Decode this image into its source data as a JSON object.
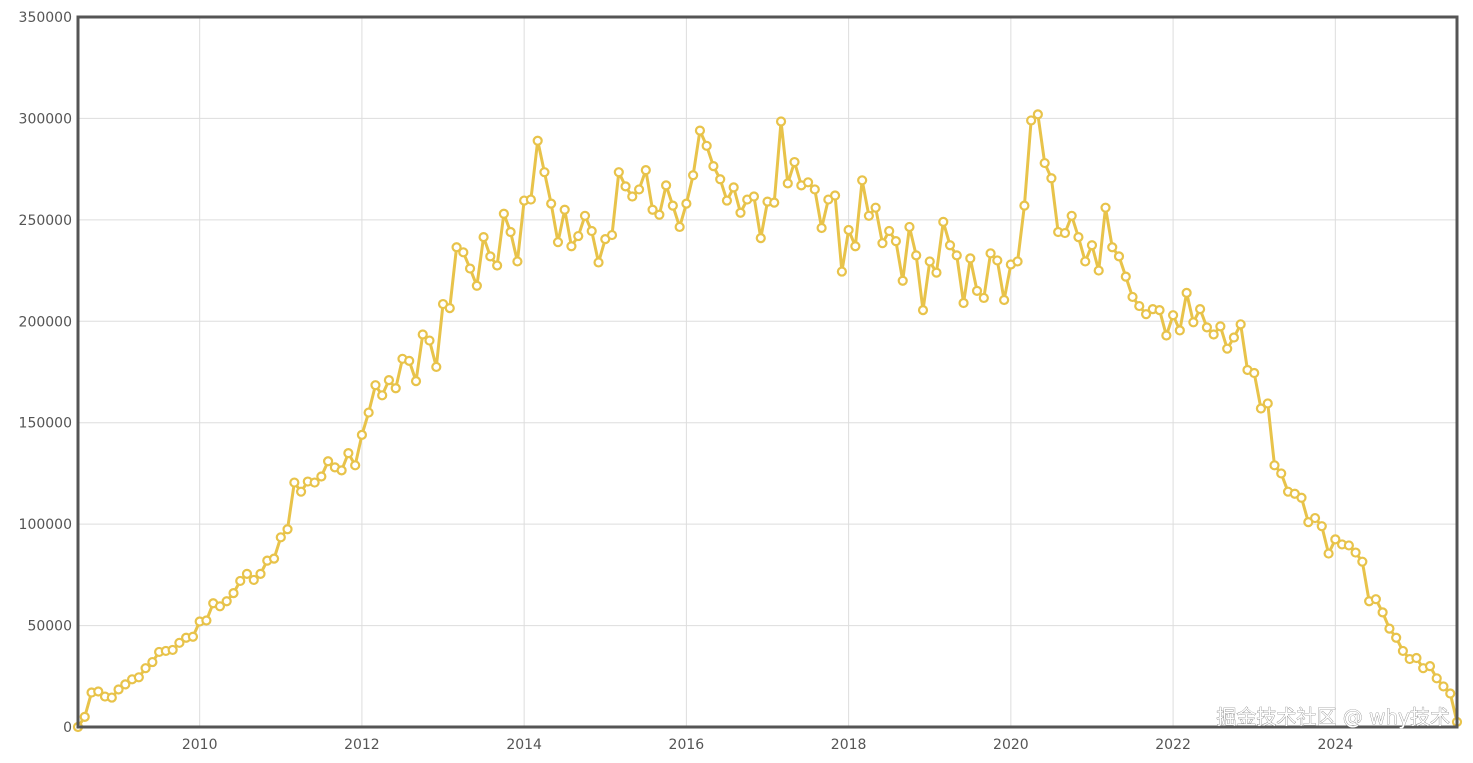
{
  "chart_data": {
    "type": "line",
    "watermark": "掘金技术社区 @ why技术",
    "xlim": [
      2008.5,
      2025.5
    ],
    "xticks": [
      2010,
      2012,
      2014,
      2016,
      2018,
      2020,
      2022,
      2024
    ],
    "ylim": [
      0,
      350000
    ],
    "yticks": [
      0,
      50000,
      100000,
      150000,
      200000,
      250000,
      300000,
      350000
    ],
    "grid": true,
    "series": [
      {
        "color": "#e8c34a",
        "x": [
          2008.5,
          2008.583,
          2008.667,
          2008.75,
          2008.833,
          2008.917,
          2009,
          2009.083,
          2009.167,
          2009.25,
          2009.333,
          2009.417,
          2009.5,
          2009.583,
          2009.667,
          2009.75,
          2009.833,
          2009.917,
          2010,
          2010.083,
          2010.167,
          2010.25,
          2010.333,
          2010.417,
          2010.5,
          2010.583,
          2010.667,
          2010.75,
          2010.833,
          2010.917,
          2011,
          2011.083,
          2011.167,
          2011.25,
          2011.333,
          2011.417,
          2011.5,
          2011.583,
          2011.667,
          2011.75,
          2011.833,
          2011.917,
          2012,
          2012.083,
          2012.167,
          2012.25,
          2012.333,
          2012.417,
          2012.5,
          2012.583,
          2012.667,
          2012.75,
          2012.833,
          2012.917,
          2013,
          2013.083,
          2013.167,
          2013.25,
          2013.333,
          2013.417,
          2013.5,
          2013.583,
          2013.667,
          2013.75,
          2013.833,
          2013.917,
          2014,
          2014.083,
          2014.167,
          2014.25,
          2014.333,
          2014.417,
          2014.5,
          2014.583,
          2014.667,
          2014.75,
          2014.833,
          2014.917,
          2015,
          2015.083,
          2015.167,
          2015.25,
          2015.333,
          2015.417,
          2015.5,
          2015.583,
          2015.667,
          2015.75,
          2015.833,
          2015.917,
          2016,
          2016.083,
          2016.167,
          2016.25,
          2016.333,
          2016.417,
          2016.5,
          2016.583,
          2016.667,
          2016.75,
          2016.833,
          2016.917,
          2017,
          2017.083,
          2017.167,
          2017.25,
          2017.333,
          2017.417,
          2017.5,
          2017.583,
          2017.667,
          2017.75,
          2017.833,
          2017.917,
          2018,
          2018.083,
          2018.167,
          2018.25,
          2018.333,
          2018.417,
          2018.5,
          2018.583,
          2018.667,
          2018.75,
          2018.833,
          2018.917,
          2019,
          2019.083,
          2019.167,
          2019.25,
          2019.333,
          2019.417,
          2019.5,
          2019.583,
          2019.667,
          2019.75,
          2019.833,
          2019.917,
          2020,
          2020.083,
          2020.167,
          2020.25,
          2020.333,
          2020.417,
          2020.5,
          2020.583,
          2020.667,
          2020.75,
          2020.833,
          2020.917,
          2021,
          2021.083,
          2021.167,
          2021.25,
          2021.333,
          2021.417,
          2021.5,
          2021.583,
          2021.667,
          2021.75,
          2021.833,
          2021.917,
          2022,
          2022.083,
          2022.167,
          2022.25,
          2022.333,
          2022.417,
          2022.5,
          2022.583,
          2022.667,
          2022.75,
          2022.833,
          2022.917,
          2023,
          2023.083,
          2023.167,
          2023.25,
          2023.333,
          2023.417,
          2023.5,
          2023.583,
          2023.667,
          2023.75,
          2023.833,
          2023.917,
          2024,
          2024.083,
          2024.167,
          2024.25,
          2024.333,
          2024.417,
          2024.5,
          2024.583,
          2024.667,
          2024.75,
          2024.833,
          2024.917,
          2025,
          2025.083,
          2025.167,
          2025.25,
          2025.333,
          2025.417,
          2025.5
        ],
        "values": [
          0,
          5000,
          17000,
          17500,
          15000,
          14500,
          18500,
          21000,
          23500,
          24500,
          29000,
          32000,
          37000,
          37500,
          38000,
          41500,
          44000,
          44500,
          52000,
          52500,
          61000,
          59500,
          62000,
          66000,
          72000,
          75500,
          72500,
          75500,
          82000,
          83000,
          93500,
          97500,
          120500,
          116000,
          121000,
          120500,
          123500,
          131000,
          128000,
          126500,
          135000,
          129000,
          144000,
          155000,
          168500,
          163500,
          171000,
          167000,
          181500,
          180500,
          170500,
          193500,
          190500,
          177500,
          208500,
          206500,
          236500,
          234000,
          226000,
          217500,
          241500,
          232000,
          227500,
          253000,
          244000,
          229500,
          259500,
          260000,
          289000,
          273500,
          258000,
          239000,
          255000,
          237000,
          242000,
          252000,
          244500,
          229000,
          240500,
          242500,
          273500,
          266500,
          261500,
          265000,
          274500,
          255000,
          252500,
          267000,
          257000,
          246500,
          258000,
          272000,
          294000,
          286500,
          276500,
          270000,
          259500,
          266000,
          253500,
          260000,
          261500,
          241000,
          259000,
          258500,
          298500,
          268000,
          278500,
          267000,
          268500,
          265000,
          246000,
          260000,
          262000,
          224500,
          245000,
          237000,
          269500,
          252000,
          256000,
          238500,
          244500,
          239500,
          220000,
          246500,
          232500,
          205500,
          229500,
          224000,
          249000,
          237500,
          232500,
          209000,
          231000,
          215000,
          211500,
          233500,
          230000,
          210500,
          228000,
          229500,
          257000,
          299000,
          302000,
          278000,
          270500,
          244000,
          243500,
          252000,
          241500,
          229500,
          237500,
          225000,
          256000,
          236500,
          232000,
          222000,
          212000,
          207500,
          203500,
          206000,
          205500,
          193000,
          203000,
          195500,
          214000,
          199500,
          206000,
          197000,
          193500,
          197500,
          186500,
          192000,
          198500,
          176000,
          174500,
          157000,
          159500,
          129000,
          125000,
          116000,
          115000,
          113000,
          101000,
          103000,
          99000,
          85500,
          92500,
          90000,
          89500,
          86000,
          81500,
          62000,
          63000,
          56500,
          48500,
          44000,
          37500,
          33500,
          34000,
          29000,
          30000,
          24000,
          20000,
          16500,
          2500
        ]
      }
    ]
  }
}
